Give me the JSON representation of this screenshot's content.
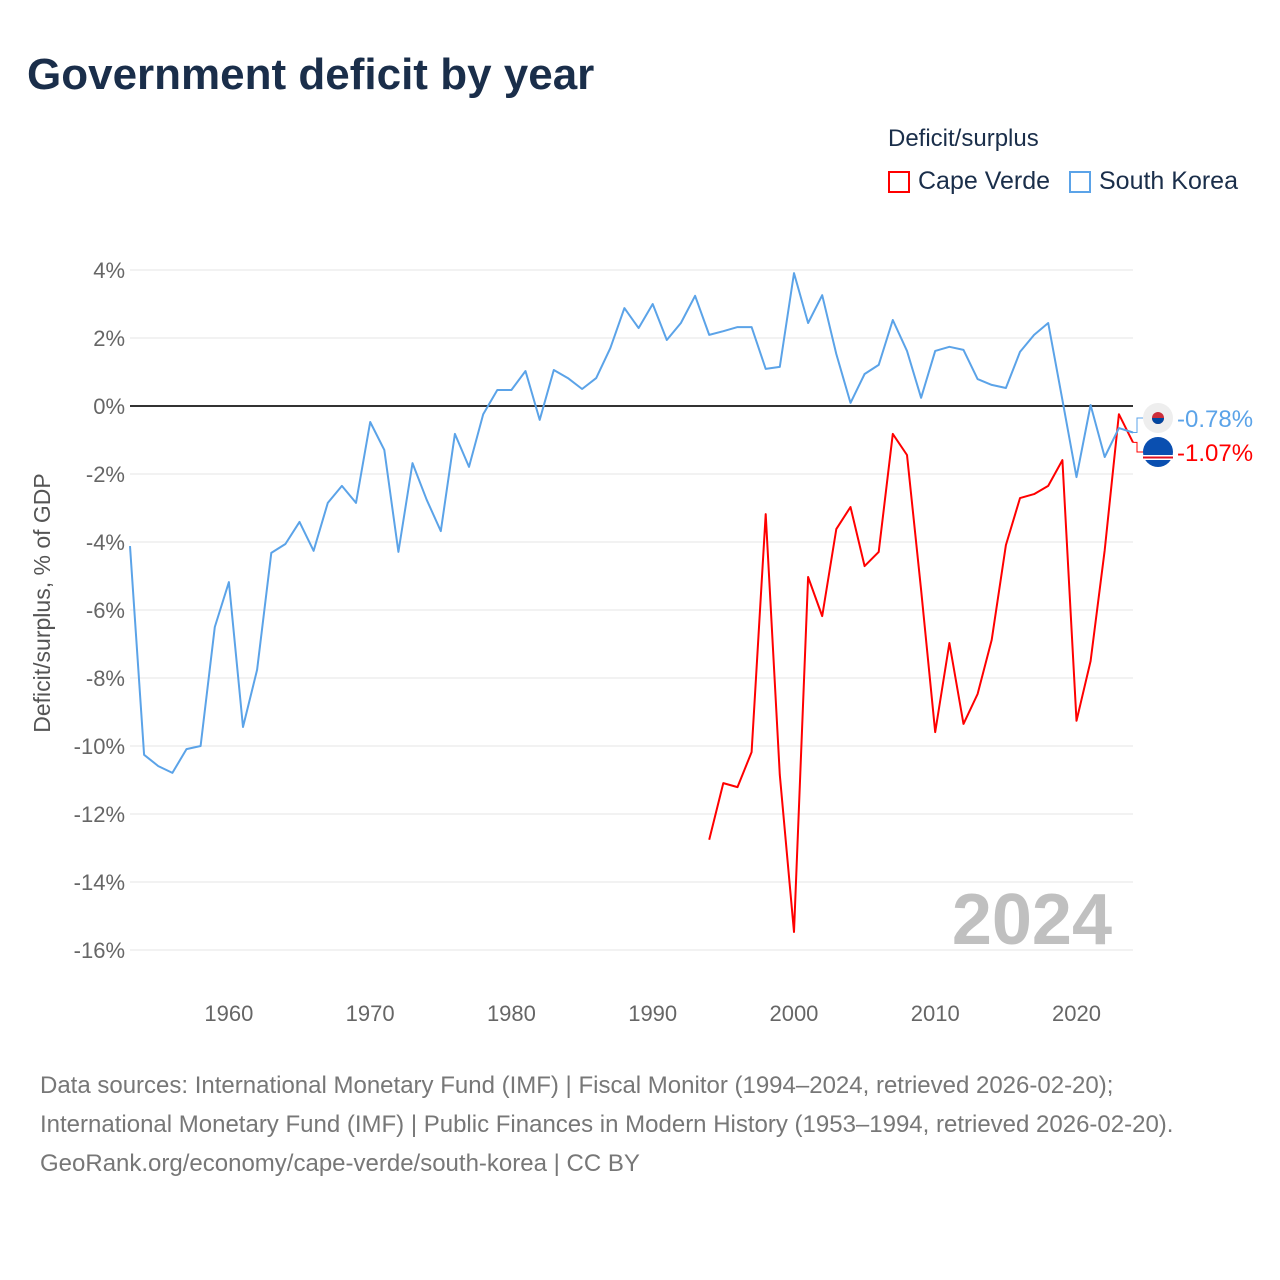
{
  "title": "Government deficit by year",
  "legend_title": "Deficit/surplus",
  "footer": {
    "sources": "Data sources: International Monetary Fund (IMF) | Fiscal Monitor (1994–2024, retrieved 2026-02-20); International Monetary Fund (IMF) | Public Finances in Modern History (1953–1994, retrieved 2026-02-20).",
    "credit": "GeoRank.org/economy/cape-verde/south-korea | CC BY"
  },
  "chart_data": {
    "type": "line",
    "title": "Government deficit by year",
    "ylabel": "Deficit/surplus, % of GDP",
    "xlabel": "",
    "xlim": [
      1953,
      2024
    ],
    "ylim": [
      -16,
      4
    ],
    "yticks": [
      4,
      2,
      0,
      -2,
      -4,
      -6,
      -8,
      -10,
      -12,
      -14,
      -16
    ],
    "ytick_labels": [
      "4%",
      "2%",
      "0%",
      "-2%",
      "-4%",
      "-6%",
      "-8%",
      "-10%",
      "-12%",
      "-14%",
      "-16%"
    ],
    "xticks": [
      1960,
      1970,
      1980,
      1990,
      2000,
      2010,
      2020
    ],
    "xtick_labels": [
      "1960",
      "1970",
      "1980",
      "1990",
      "2000",
      "2010",
      "2020"
    ],
    "grid": true,
    "legend_placement": "top-right",
    "year_watermark": "2024",
    "series": [
      {
        "name": "Cape Verde",
        "color": "#ff0000",
        "end_label": "-1.07%",
        "start_year": 1994,
        "values": [
          -12.76,
          -11.09,
          -11.21,
          -10.18,
          -3.18,
          -10.85,
          -15.47,
          -5.03,
          -6.18,
          -3.62,
          -2.97,
          -4.71,
          -4.29,
          -0.82,
          -1.44,
          -5.41,
          -9.59,
          -6.97,
          -9.35,
          -8.47,
          -6.88,
          -4.09,
          -2.71,
          -2.59,
          -2.35,
          -1.59,
          -9.26,
          -7.5,
          -4.24,
          -0.24,
          -1.07
        ]
      },
      {
        "name": "South Korea",
        "color": "#5ba3e8",
        "end_label": "-0.78%",
        "start_year": 1953,
        "values": [
          -4.12,
          -10.26,
          -10.59,
          -10.79,
          -10.09,
          -10.0,
          -6.5,
          -5.18,
          -9.44,
          -7.76,
          -4.32,
          -4.06,
          -3.41,
          -4.26,
          -2.85,
          -2.35,
          -2.85,
          -0.47,
          -1.29,
          -4.29,
          -1.68,
          -2.76,
          -3.68,
          -0.82,
          -1.79,
          -0.24,
          0.47,
          0.47,
          1.03,
          -0.41,
          1.06,
          0.82,
          0.5,
          0.82,
          1.7,
          2.88,
          2.29,
          3.0,
          1.94,
          2.44,
          3.24,
          2.09,
          2.2,
          2.32,
          2.32,
          1.09,
          1.15,
          3.91,
          2.44,
          3.26,
          1.53,
          0.09,
          0.94,
          1.21,
          2.53,
          1.62,
          0.24,
          1.62,
          1.74,
          1.65,
          0.79,
          0.62,
          0.53,
          1.59,
          2.09,
          2.44,
          0.18,
          -2.09,
          0.03,
          -1.5,
          -0.65,
          -0.78
        ]
      }
    ]
  }
}
